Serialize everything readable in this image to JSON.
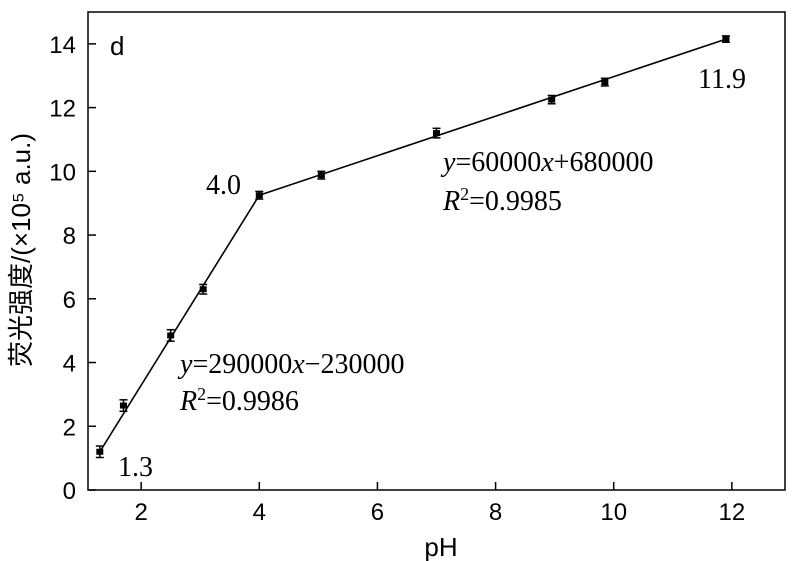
{
  "chart_data": {
    "type": "line",
    "panel_label": "d",
    "xlabel": "pH",
    "ylabel": "荧光强度/(×10⁵ a.u.)",
    "xlim": [
      1.1,
      12.9
    ],
    "ylim": [
      0,
      15
    ],
    "x_ticks": [
      2,
      4,
      6,
      8,
      10,
      12
    ],
    "y_ticks": [
      0,
      2,
      4,
      6,
      8,
      10,
      12,
      14
    ],
    "grid": false,
    "series": [
      {
        "x": [
          1.3,
          1.7,
          2.5,
          3.05,
          4.0,
          5.05,
          7.0,
          8.95,
          9.85,
          11.9
        ],
        "y": [
          1.2,
          2.65,
          4.85,
          6.3,
          9.25,
          9.88,
          11.2,
          12.25,
          12.8,
          14.15
        ],
        "err": [
          0.18,
          0.18,
          0.18,
          0.15,
          0.12,
          0.12,
          0.15,
          0.13,
          0.12,
          0.1
        ]
      }
    ],
    "fit_lines": [
      {
        "x": [
          1.3,
          4.0
        ],
        "y": [
          1.2,
          9.25
        ],
        "equation": {
          "y": "y",
          "rest": "=290000",
          "x": "x",
          "tail": "−230000"
        },
        "r2": {
          "R": "R",
          "sup": "2",
          "tail": "=0.9986"
        }
      },
      {
        "x": [
          4.0,
          11.9
        ],
        "y": [
          9.25,
          14.15
        ],
        "equation": {
          "y": "y",
          "rest": "=60000",
          "x": "x",
          "tail": "+680000"
        },
        "r2": {
          "R": "R",
          "sup": "2",
          "tail": "=0.9985"
        }
      }
    ],
    "annotations": [
      "1.3",
      "4.0",
      "11.9"
    ]
  }
}
